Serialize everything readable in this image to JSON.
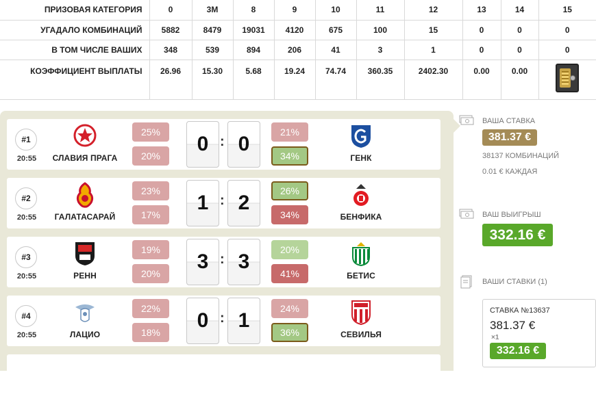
{
  "prize_table": {
    "rows": [
      {
        "label": "ПРИЗОВАЯ КАТЕГОРИЯ",
        "values": [
          "0",
          "3M",
          "8",
          "9",
          "10",
          "11",
          "12",
          "13",
          "14",
          "15"
        ]
      },
      {
        "label": "УГАДАЛО КОМБИНАЦИЙ",
        "values": [
          "5882",
          "8479",
          "19031",
          "4120",
          "675",
          "100",
          "15",
          "0",
          "0",
          "0"
        ]
      },
      {
        "label": "В ТОМ ЧИСЛЕ ВАШИХ",
        "values": [
          "348",
          "539",
          "894",
          "206",
          "41",
          "3",
          "1",
          "0",
          "0",
          "0"
        ]
      },
      {
        "label": "КОЭФФИЦИЕНТ ВЫПЛАТЫ",
        "values": [
          "26.96",
          "15.30",
          "5.68",
          "19.24",
          "74.74",
          "360.35",
          "2402.30",
          "0.00",
          "0.00",
          ""
        ]
      }
    ],
    "jackpot_icon": "safe-icon"
  },
  "matches": [
    {
      "num": "#1",
      "time": "20:55",
      "home": "СЛАВИЯ ПРАГА",
      "away": "ГЕНК",
      "home_pct": [
        "25%",
        "20%"
      ],
      "away_pct": [
        "21%",
        "34%"
      ],
      "score_home": "0",
      "score_away": "0",
      "sep": ":"
    },
    {
      "num": "#2",
      "time": "20:55",
      "home": "ГАЛАТАСАРАЙ",
      "away": "БЕНФИКА",
      "home_pct": [
        "23%",
        "17%"
      ],
      "away_pct": [
        "26%",
        "34%"
      ],
      "score_home": "1",
      "score_away": "2",
      "sep": ":"
    },
    {
      "num": "#3",
      "time": "20:55",
      "home": "РЕНН",
      "away": "БЕТИС",
      "home_pct": [
        "19%",
        "20%"
      ],
      "away_pct": [
        "20%",
        "41%"
      ],
      "score_home": "3",
      "score_away": "3",
      "sep": ":"
    },
    {
      "num": "#4",
      "time": "20:55",
      "home": "ЛАЦИО",
      "away": "СЕВИЛЬЯ",
      "home_pct": [
        "22%",
        "18%"
      ],
      "away_pct": [
        "24%",
        "36%"
      ],
      "score_home": "0",
      "score_away": "1",
      "sep": ":"
    }
  ],
  "sidebar": {
    "stake_label": "ВАША СТАВКА",
    "stake_value": "381.37 €",
    "combinations": "38137 КОМБИНАЦИЙ",
    "each": "0.01 € КАЖДАЯ",
    "win_label": "ВАШ ВЫИГРЫШ",
    "win_value": "332.16 €",
    "bets_label": "ВАШИ СТАВКИ (1)",
    "bet_card": {
      "title": "СТАВКА №13637",
      "value": "381.37 €",
      "multiplier": "×1",
      "win": "332.16 €"
    }
  },
  "colors": {
    "panel_bg": "#e9e8d8",
    "brown_badge": "#a48b56",
    "green_badge": "#59a82a",
    "pct_red": "#d9a5a5",
    "pct_green": "#b5d49a"
  }
}
